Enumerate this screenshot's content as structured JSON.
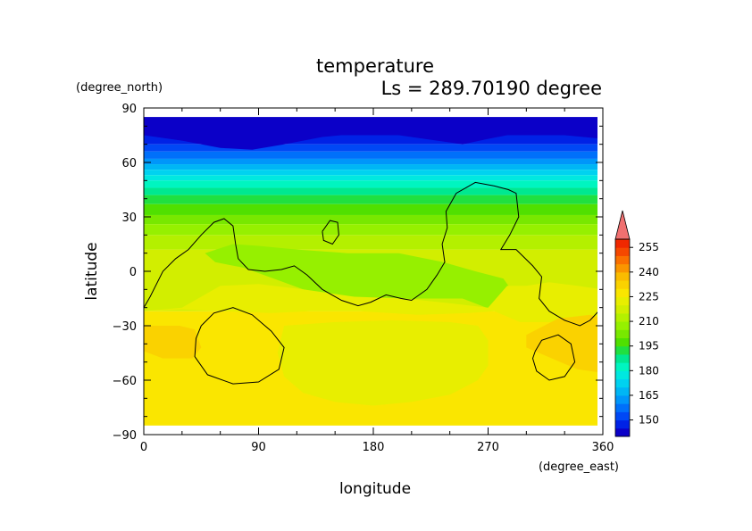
{
  "chart_data": {
    "type": "heatmap",
    "title": "temperature",
    "subtitle": "Ls = 289.70190 degree",
    "xlabel": "longitude",
    "ylabel": "latitude",
    "x_unit": "(degree_east)",
    "y_unit": "(degree_north)",
    "xlim": [
      0,
      360
    ],
    "ylim": [
      -90,
      90
    ],
    "x_ticks": [
      "0",
      "90",
      "180",
      "270",
      "360"
    ],
    "y_ticks": [
      "90",
      "60",
      "30",
      "0",
      "−30",
      "−60",
      "−90"
    ],
    "x_tick_values": [
      0,
      90,
      180,
      270,
      360
    ],
    "y_tick_values": [
      90,
      60,
      30,
      0,
      -30,
      -60,
      -90
    ],
    "data_lat_range": [
      -85,
      85
    ],
    "colorbar": {
      "levels": [
        140,
        145,
        150,
        155,
        160,
        165,
        170,
        175,
        180,
        185,
        190,
        195,
        200,
        205,
        210,
        215,
        220,
        225,
        230,
        235,
        240,
        245,
        250,
        255,
        260
      ],
      "colors": [
        "#0b00c8",
        "#0022e6",
        "#0048f5",
        "#0070fa",
        "#0096fa",
        "#00b6f5",
        "#00d2f0",
        "#00e8e0",
        "#00f5c0",
        "#00e890",
        "#20e040",
        "#50e000",
        "#78e800",
        "#96f000",
        "#b4f000",
        "#d2ee00",
        "#e8ee00",
        "#fae600",
        "#fad200",
        "#fabc00",
        "#fa9600",
        "#fa7000",
        "#f54800",
        "#f02800"
      ],
      "labels": [
        "150",
        "165",
        "180",
        "195",
        "210",
        "225",
        "240",
        "255"
      ],
      "label_values": [
        150,
        165,
        180,
        195,
        210,
        225,
        240,
        255
      ],
      "over_color": "#f07070"
    },
    "bands": [
      {
        "lat_top": 85,
        "lat_bottom": 75,
        "value": 140
      },
      {
        "lat_top": 75,
        "lat_bottom": 70,
        "value": 145
      },
      {
        "lat_top": 70,
        "lat_bottom": 66,
        "value": 150
      },
      {
        "lat_top": 66,
        "lat_bottom": 62,
        "value": 155
      },
      {
        "lat_top": 62,
        "lat_bottom": 59,
        "value": 160
      },
      {
        "lat_top": 59,
        "lat_bottom": 56,
        "value": 165
      },
      {
        "lat_top": 56,
        "lat_bottom": 53,
        "value": 170
      },
      {
        "lat_top": 53,
        "lat_bottom": 50,
        "value": 175
      },
      {
        "lat_top": 50,
        "lat_bottom": 46,
        "value": 180
      },
      {
        "lat_top": 46,
        "lat_bottom": 42,
        "value": 185
      },
      {
        "lat_top": 42,
        "lat_bottom": 37,
        "value": 190
      },
      {
        "lat_top": 37,
        "lat_bottom": 31,
        "value": 195
      },
      {
        "lat_top": 31,
        "lat_bottom": 26,
        "value": 200
      },
      {
        "lat_top": 26,
        "lat_bottom": 20,
        "value": 205
      },
      {
        "lat_top": 20,
        "lat_bottom": 12,
        "value": 210
      },
      {
        "lat_top": 12,
        "lat_bottom": -22,
        "value": 215
      },
      {
        "lat_top": -22,
        "lat_bottom": -85,
        "value": 225
      }
    ],
    "regions": [
      {
        "name": "central-lowlat-region",
        "value": 205,
        "points": [
          [
            48,
            10
          ],
          [
            70,
            15
          ],
          [
            90,
            14
          ],
          [
            120,
            12
          ],
          [
            160,
            10
          ],
          [
            200,
            10
          ],
          [
            235,
            5
          ],
          [
            260,
            0
          ],
          [
            282,
            -4
          ],
          [
            292,
            -14
          ],
          [
            276,
            -22
          ],
          [
            250,
            -15
          ],
          [
            215,
            -15
          ],
          [
            190,
            -18
          ],
          [
            160,
            -15
          ],
          [
            125,
            -10
          ],
          [
            98,
            -3
          ],
          [
            78,
            2
          ],
          [
            56,
            5
          ]
        ]
      },
      {
        "name": "warm-band-region",
        "value": 220,
        "points": [
          [
            0,
            -22
          ],
          [
            30,
            -20
          ],
          [
            60,
            -8
          ],
          [
            90,
            -7
          ],
          [
            125,
            -10
          ],
          [
            165,
            -14
          ],
          [
            205,
            -15
          ],
          [
            245,
            -18
          ],
          [
            270,
            -20
          ],
          [
            285,
            -8
          ],
          [
            300,
            -8
          ],
          [
            318,
            -6
          ],
          [
            340,
            -8
          ],
          [
            360,
            -10
          ],
          [
            360,
            -26
          ],
          [
            320,
            -28
          ],
          [
            295,
            -28
          ],
          [
            275,
            -22
          ],
          [
            255,
            -23
          ],
          [
            215,
            -24
          ],
          [
            170,
            -22
          ],
          [
            130,
            -22
          ],
          [
            100,
            -23
          ],
          [
            60,
            -22
          ],
          [
            30,
            -21
          ]
        ]
      },
      {
        "name": "southern-plateau-region",
        "value": 220,
        "points": [
          [
            110,
            -30
          ],
          [
            150,
            -28
          ],
          [
            195,
            -27
          ],
          [
            240,
            -28
          ],
          [
            262,
            -30
          ],
          [
            270,
            -38
          ],
          [
            270,
            -52
          ],
          [
            262,
            -60
          ],
          [
            240,
            -68
          ],
          [
            210,
            -72
          ],
          [
            180,
            -74
          ],
          [
            150,
            -72
          ],
          [
            125,
            -67
          ],
          [
            110,
            -58
          ],
          [
            105,
            -45
          ]
        ]
      },
      {
        "name": "warm-west-region",
        "value": 230,
        "points": [
          [
            0,
            -30
          ],
          [
            28,
            -30
          ],
          [
            40,
            -32
          ],
          [
            45,
            -42
          ],
          [
            38,
            -48
          ],
          [
            15,
            -48
          ],
          [
            0,
            -44
          ]
        ]
      },
      {
        "name": "warm-east-region",
        "value": 230,
        "points": [
          [
            300,
            -35
          ],
          [
            325,
            -26
          ],
          [
            350,
            -24
          ],
          [
            360,
            -26
          ],
          [
            360,
            -56
          ],
          [
            340,
            -54
          ],
          [
            320,
            -48
          ],
          [
            300,
            -42
          ]
        ]
      },
      {
        "name": "cold-bulge-west",
        "value": 140,
        "points": [
          [
            0,
            75
          ],
          [
            30,
            72
          ],
          [
            60,
            68
          ],
          [
            85,
            67
          ],
          [
            110,
            70
          ],
          [
            140,
            74
          ],
          [
            170,
            76
          ],
          [
            200,
            75
          ],
          [
            230,
            72
          ],
          [
            250,
            70
          ],
          [
            270,
            73
          ],
          [
            300,
            77
          ],
          [
            330,
            75
          ],
          [
            360,
            73
          ],
          [
            360,
            85
          ],
          [
            0,
            85
          ]
        ]
      }
    ],
    "contours": [
      {
        "name": "contour-north-continent",
        "points": [
          [
            0,
            -20
          ],
          [
            5,
            -14
          ],
          [
            15,
            0
          ],
          [
            25,
            7
          ],
          [
            35,
            12
          ],
          [
            45,
            20
          ],
          [
            55,
            27
          ],
          [
            63,
            29
          ],
          [
            70,
            25
          ],
          [
            72,
            15
          ],
          [
            74,
            7
          ],
          [
            82,
            1
          ],
          [
            95,
            0
          ],
          [
            108,
            1
          ],
          [
            118,
            3
          ],
          [
            128,
            -2
          ],
          [
            140,
            -10
          ],
          [
            155,
            -16
          ],
          [
            168,
            -19
          ],
          [
            178,
            -17
          ],
          [
            190,
            -13
          ],
          [
            202,
            -15
          ],
          [
            210,
            -16
          ],
          [
            222,
            -10
          ],
          [
            230,
            -2
          ],
          [
            236,
            5
          ],
          [
            234,
            15
          ],
          [
            238,
            24
          ],
          [
            237,
            33
          ],
          [
            245,
            43
          ],
          [
            260,
            49
          ],
          [
            275,
            47
          ],
          [
            286,
            45
          ],
          [
            292,
            43
          ],
          [
            294,
            30
          ],
          [
            287,
            20
          ],
          [
            280,
            12
          ],
          [
            292,
            12
          ],
          [
            305,
            3
          ],
          [
            312,
            -3
          ],
          [
            310,
            -15
          ],
          [
            318,
            -22
          ],
          [
            330,
            -27
          ],
          [
            342,
            -30
          ],
          [
            350,
            -27
          ],
          [
            358,
            -21
          ]
        ]
      },
      {
        "name": "contour-small-island",
        "points": [
          [
            140,
            22
          ],
          [
            146,
            28
          ],
          [
            152,
            27
          ],
          [
            153,
            20
          ],
          [
            148,
            15
          ],
          [
            141,
            17
          ],
          [
            140,
            22
          ]
        ]
      },
      {
        "name": "contour-west-basin",
        "points": [
          [
            45,
            -30
          ],
          [
            55,
            -23
          ],
          [
            70,
            -20
          ],
          [
            85,
            -24
          ],
          [
            100,
            -33
          ],
          [
            110,
            -42
          ],
          [
            106,
            -54
          ],
          [
            90,
            -61
          ],
          [
            70,
            -62
          ],
          [
            50,
            -57
          ],
          [
            40,
            -47
          ],
          [
            41,
            -37
          ],
          [
            45,
            -30
          ]
        ]
      },
      {
        "name": "contour-east-basin",
        "points": [
          [
            307,
            -44
          ],
          [
            312,
            -38
          ],
          [
            325,
            -35
          ],
          [
            335,
            -40
          ],
          [
            338,
            -50
          ],
          [
            330,
            -58
          ],
          [
            318,
            -60
          ],
          [
            308,
            -55
          ],
          [
            305,
            -48
          ],
          [
            307,
            -44
          ]
        ]
      }
    ]
  }
}
